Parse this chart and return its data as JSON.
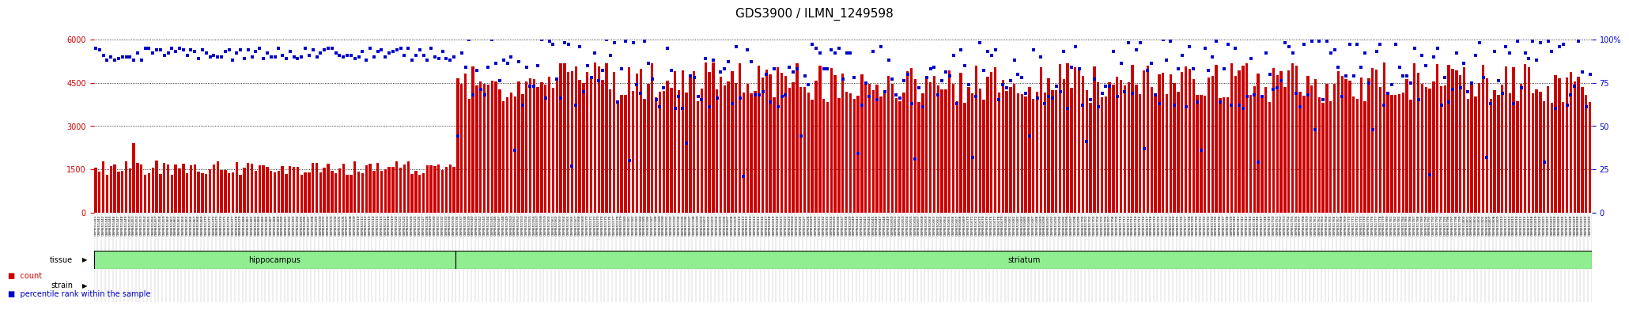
{
  "title": "GDS3900 / ILMN_1249598",
  "left_ylabel_color": "#cc0000",
  "right_ylabel_color": "#0000cc",
  "ylim_left": [
    0,
    6000
  ],
  "ylim_right": [
    0,
    100
  ],
  "yticks_left": [
    0,
    1500,
    3000,
    4500,
    6000
  ],
  "yticks_right": [
    0,
    25,
    50,
    75,
    100
  ],
  "bar_color": "#cc0000",
  "dot_color": "#0000cc",
  "background_color": "#ffffff",
  "plot_bg_color": "#ffffff",
  "tissue_hippocampus_color": "#90ee90",
  "strain_color": "#ffaaff",
  "label_area_color": "#d3d3d3",
  "n_hippocampus": 95,
  "n_striatum": 298,
  "hippocampus_label": "hippocampus",
  "striatum_label": "striatum",
  "tissue_label": "tissue",
  "strain_label": "strain",
  "legend_count_color": "#cc0000",
  "legend_dot_color": "#0000cc",
  "legend_count_label": "count",
  "legend_percentile_label": "percentile rank within the sample",
  "title_fontsize": 11,
  "tick_fontsize": 7
}
